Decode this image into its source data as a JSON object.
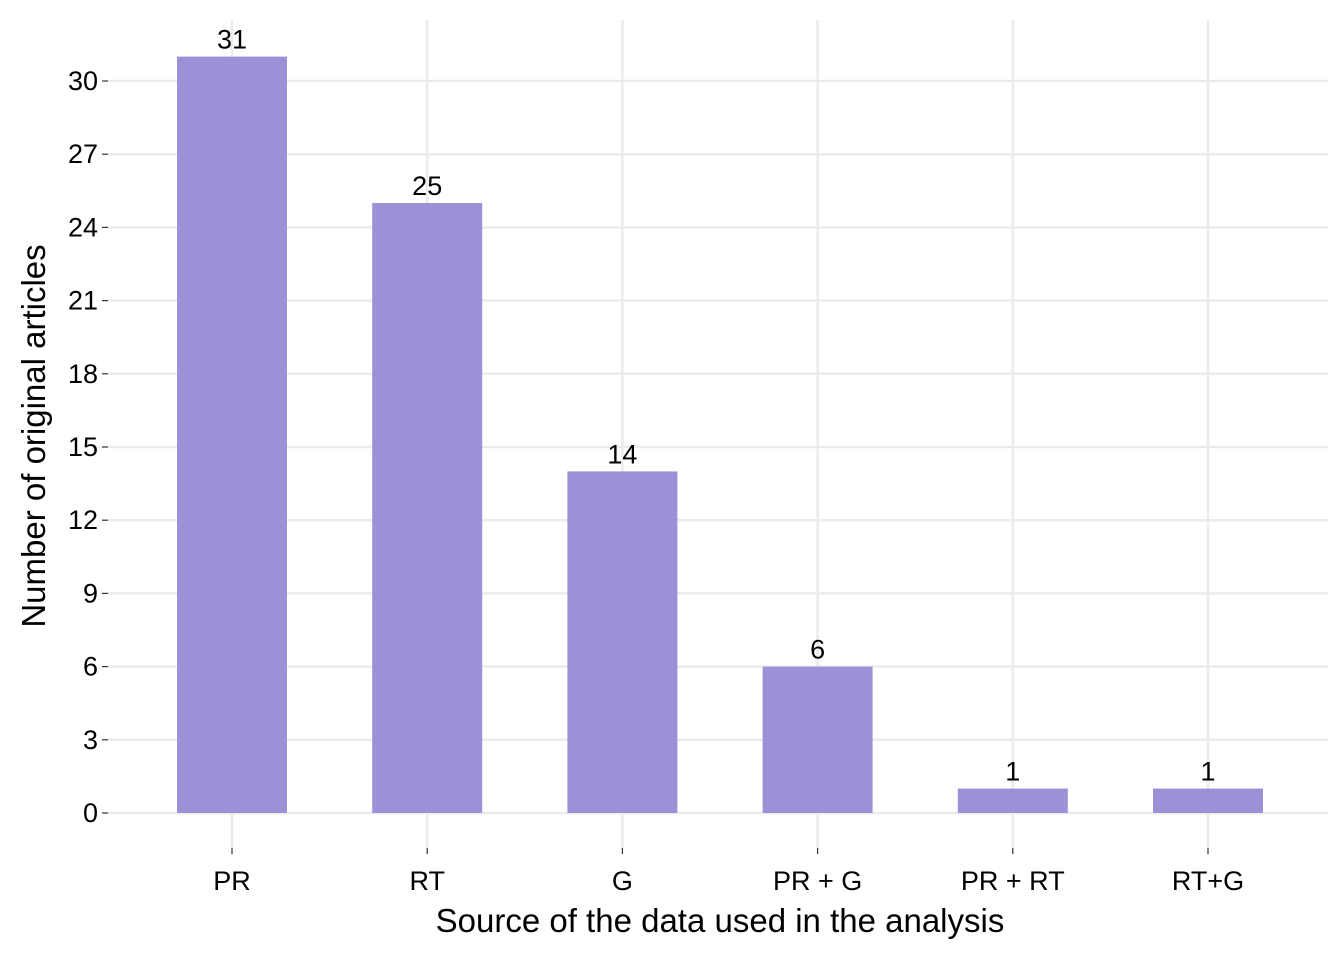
{
  "chart_data": {
    "type": "bar",
    "categories": [
      "PR",
      "RT",
      "G",
      "PR + G",
      "PR + RT",
      "RT+G"
    ],
    "values": [
      31,
      25,
      14,
      6,
      1,
      1
    ],
    "data_labels": [
      "31",
      "25",
      "14",
      "6",
      "1",
      "1"
    ],
    "title": "",
    "xlabel": "Source of the data used in the analysis",
    "ylabel": "Number of original articles",
    "ylim": [
      0,
      32
    ],
    "yticks": [
      0,
      3,
      6,
      9,
      12,
      15,
      18,
      21,
      24,
      27,
      30
    ],
    "grid": true,
    "legend": "none",
    "bar_color": "#9b91d9"
  }
}
